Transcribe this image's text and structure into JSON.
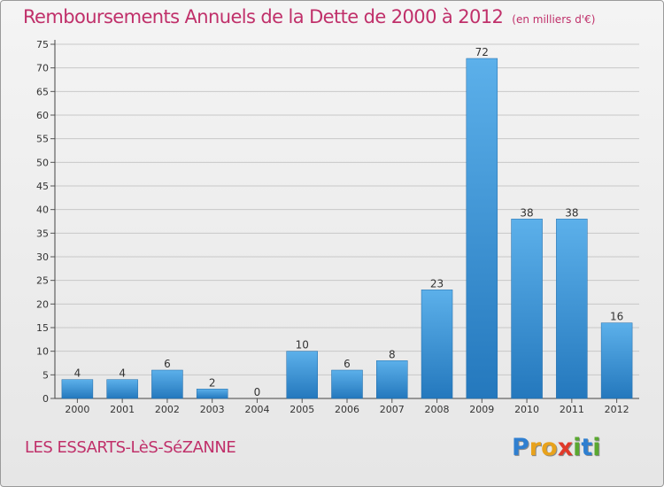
{
  "title": "Remboursements Annuels de la Dette de 2000 à 2012",
  "unit": "(en milliers d'€)",
  "commune": "LES ESSARTS-LèS-SéZANNE",
  "logo": "Proxiti",
  "colors": {
    "title": "#c0306a",
    "bar_light": "#5cb0ea",
    "bar_dark": "#2478bd",
    "grid": "#c8c8c8"
  },
  "chart_data": {
    "type": "bar",
    "title": "Remboursements Annuels de la Dette de 2000 à 2012",
    "xlabel": "",
    "ylabel": "",
    "categories": [
      "2000",
      "2001",
      "2002",
      "2003",
      "2004",
      "2005",
      "2006",
      "2007",
      "2008",
      "2009",
      "2010",
      "2011",
      "2012"
    ],
    "values": [
      4,
      4,
      6,
      2,
      0,
      10,
      6,
      8,
      23,
      72,
      38,
      38,
      16
    ],
    "ylim": [
      0,
      75
    ],
    "yticks": [
      0,
      5,
      10,
      15,
      20,
      25,
      30,
      35,
      40,
      45,
      50,
      55,
      60,
      65,
      70,
      75
    ],
    "grid": true,
    "legend": "none"
  }
}
